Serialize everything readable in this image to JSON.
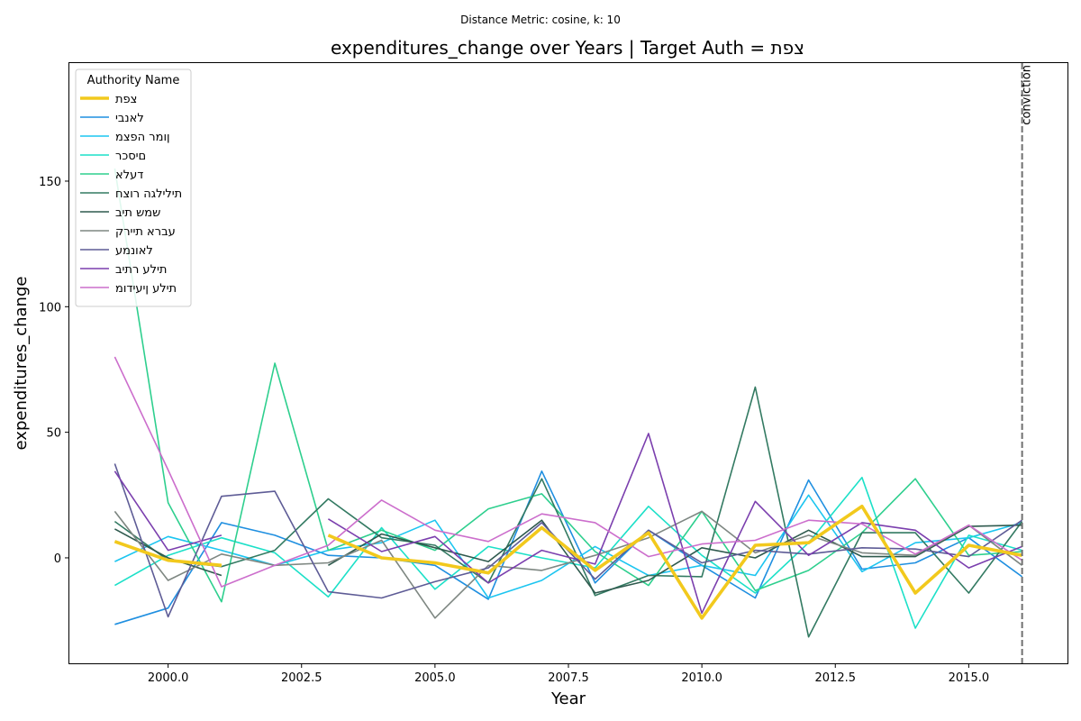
{
  "chart_data": {
    "type": "line",
    "suptitle": "Distance Metric: cosine, k: 10",
    "title": "expenditures_change over Years | Target Auth = צפת",
    "xlabel": "Year",
    "ylabel": "expenditures_change",
    "xlim": [
      1998.15,
      2016.85
    ],
    "ylim": [
      -42,
      197
    ],
    "xticks": [
      2000.0,
      2002.5,
      2005.0,
      2007.5,
      2010.0,
      2012.5,
      2015.0
    ],
    "xtick_labels": [
      "2000.0",
      "2002.5",
      "2005.0",
      "2007.5",
      "2010.0",
      "2012.5",
      "2015.0"
    ],
    "yticks": [
      0,
      50,
      100,
      150
    ],
    "ytick_labels": [
      "0",
      "50",
      "100",
      "150"
    ],
    "grid": false,
    "legend": {
      "title": "Authority Name",
      "placement": "top-left"
    },
    "vline": {
      "x": 2016,
      "label": "conviction",
      "color": "#707070"
    },
    "x": [
      1999,
      2000,
      2001,
      2002,
      2003,
      2004,
      2005,
      2006,
      2007,
      2008,
      2009,
      2010,
      2011,
      2012,
      2013,
      2014,
      2015,
      2016
    ],
    "series": [
      {
        "name": "צפת",
        "color": "#f2c91d",
        "target": true,
        "values": [
          6.5,
          -1,
          -3,
          null,
          9,
          0,
          -2,
          -6,
          12,
          -5,
          10,
          -24,
          5,
          6,
          20.5,
          -14,
          5,
          1
        ]
      },
      {
        "name": "לאנבי",
        "color": "#1f8fe0",
        "values": [
          -26.5,
          -20,
          14,
          9,
          1,
          0,
          -3,
          -16.5,
          34.5,
          -10,
          11,
          -3,
          -16,
          31,
          -4.5,
          -2,
          8,
          -7.5
        ]
      },
      {
        "name": "ןומר הפצמ",
        "color": "#1cc5f0",
        "values": [
          -1.5,
          8.5,
          3,
          -3,
          3,
          6,
          15,
          -16,
          -9,
          4.5,
          -7,
          -3,
          -7,
          25,
          -5.5,
          6,
          8,
          14
        ]
      },
      {
        "name": "םיסכר",
        "color": "#1ce0c8",
        "values": [
          -11,
          1,
          8,
          2,
          -15.5,
          12,
          -12.5,
          4.5,
          0,
          -4,
          20.5,
          1,
          -14,
          6,
          32,
          -28,
          9,
          3
        ]
      },
      {
        "name": "דעלא",
        "color": "#2ecf8e",
        "values": [
          155,
          22,
          -17.5,
          77.5,
          3,
          11,
          3,
          19.5,
          25.5,
          2.5,
          -11,
          18.5,
          -13,
          -5,
          10,
          31.5,
          1,
          2.5
        ]
      },
      {
        "name": "תילילגה רוצח",
        "color": "#337a62",
        "values": [
          14.5,
          -1,
          -3.5,
          3,
          23.5,
          8,
          5,
          -10,
          31.5,
          -15,
          -7,
          -7.5,
          68,
          -31.5,
          10,
          10,
          -14,
          14.5
        ]
      },
      {
        "name": "שמש תיב",
        "color": "#2f5a4e",
        "values": [
          11.5,
          0,
          -7,
          null,
          -3,
          9.5,
          4,
          -1.5,
          15,
          -14,
          -9,
          4,
          0,
          11,
          0.5,
          0.5,
          12.5,
          13
        ]
      },
      {
        "name": "עברא תיירק",
        "color": "#7e8782",
        "values": [
          18.5,
          -9,
          1.5,
          -3,
          -2,
          7,
          -24,
          -3,
          -5,
          1,
          8,
          18.5,
          2,
          9,
          2,
          1,
          13,
          -3
        ]
      },
      {
        "name": "לאונמע",
        "color": "#5e5c96",
        "values": [
          37.5,
          -23.5,
          24.5,
          26.5,
          -13.5,
          -16,
          -9.5,
          -4,
          14,
          -8.5,
          11,
          -2,
          3,
          1.5,
          4,
          3.5,
          0.5,
          15
        ]
      },
      {
        "name": "תילע רתיב",
        "color": "#7b3fae",
        "values": [
          34.5,
          3,
          9,
          null,
          15.5,
          2.5,
          8.5,
          -10,
          3,
          -2.5,
          49.5,
          -22,
          22.5,
          1,
          14,
          11,
          -4,
          4.5
        ]
      },
      {
        "name": "תילע ןיעידומ",
        "color": "#cc6ecc",
        "values": [
          80,
          35,
          -11.5,
          -3,
          5,
          23,
          11,
          6.5,
          17.5,
          14,
          0.5,
          5.5,
          7,
          15,
          13.5,
          1.5,
          13,
          -1
        ]
      }
    ]
  }
}
